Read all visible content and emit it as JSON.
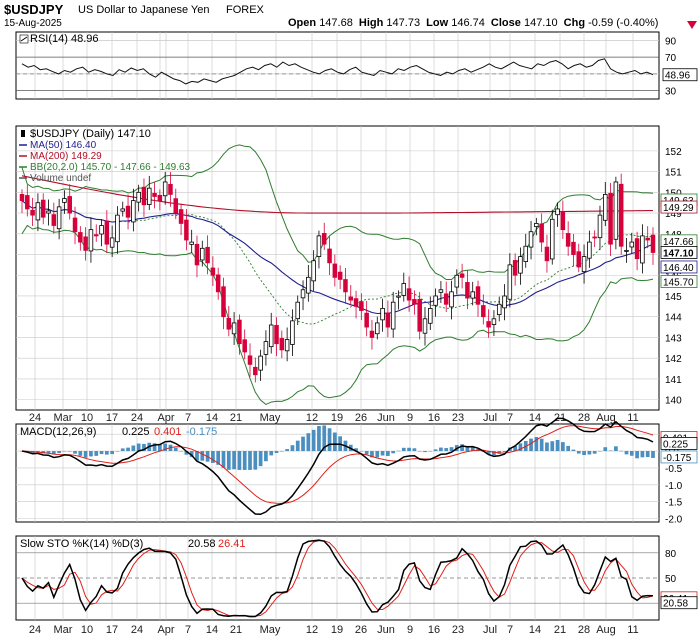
{
  "header": {
    "symbol": "$USDJPY",
    "name": "US Dollar to Japanese Yen",
    "exchange": "FOREX",
    "date": "15-Aug-2025",
    "ohlc": {
      "open_label": "Open",
      "open": "147.68",
      "high_label": "High",
      "high": "147.73",
      "low_label": "Low",
      "low": "146.74",
      "close_label": "Close",
      "close": "147.10",
      "chg_label": "Chg",
      "chg": "-0.59 (-0.40%)"
    },
    "chg_icon": "down-triangle-icon"
  },
  "colors": {
    "up": "#000000",
    "down": "#d6003a",
    "ma50": "#1f1f8f",
    "ma200": "#b0102a",
    "bb": "#2e7d2e",
    "hist": "#4a8fc0",
    "signal": "#e0201a",
    "grid": "#c8c8c8"
  },
  "chart_data": [
    {
      "type": "line",
      "panel": "RSI",
      "legend": {
        "label": "RSI(14)",
        "value": "48.96"
      },
      "ylim": [
        20,
        100
      ],
      "yticks": [
        "90",
        "70",
        "50",
        "30"
      ],
      "overbought": 70,
      "oversold": 30,
      "last_label": "48.96",
      "values": [
        62,
        58,
        60,
        55,
        56,
        53,
        50,
        54,
        52,
        56,
        58,
        52,
        55,
        53,
        50,
        48,
        55,
        52,
        57,
        54,
        56,
        50,
        46,
        52,
        48,
        44,
        42,
        38,
        41,
        40,
        44,
        42,
        40,
        44,
        46,
        48,
        52,
        56,
        58,
        55,
        60,
        62,
        58,
        64,
        60,
        62,
        58,
        55,
        52,
        50,
        54,
        56,
        52,
        50,
        55,
        58,
        52,
        50,
        48,
        54,
        52,
        50,
        56,
        54,
        58,
        60,
        56,
        52,
        50,
        48,
        52,
        50,
        54,
        56,
        52,
        55,
        58,
        62,
        58,
        56,
        60,
        64,
        60,
        58,
        56,
        62,
        60,
        64,
        66,
        62,
        56,
        60,
        62,
        58,
        60,
        66,
        68,
        56,
        52,
        50,
        52,
        54,
        50,
        52,
        48.96
      ]
    },
    {
      "type": "candlestick",
      "panel": "Price",
      "legend": [
        {
          "label": "$USDJPY (Daily) 147.10",
          "icon": "candle-icon"
        },
        {
          "label": "MA(50) 146.40"
        },
        {
          "label": "MA(200) 149.29"
        },
        {
          "label": "BB(20,2.0) 145.70 - 147.66 - 149.63"
        },
        {
          "label": "Volume undef"
        }
      ],
      "ylim": [
        139.5,
        153.2
      ],
      "yticks": [
        "152",
        "151",
        "150",
        "149",
        "148",
        "147",
        "146",
        "145",
        "144",
        "143",
        "142",
        "141",
        "140"
      ],
      "right_labels": [
        "149.63",
        "149.29",
        "147.66",
        "147.10",
        "146.40",
        "145.70"
      ],
      "x_labels": [
        "24",
        "Mar",
        "10",
        "17",
        "24",
        "Mar",
        "Apr",
        "7",
        "14",
        "21",
        "May",
        "12",
        "19",
        "26",
        "Jun",
        "9",
        "16",
        "23",
        "Jul",
        "7",
        "14",
        "21",
        "28",
        "Aug",
        "11"
      ],
      "closes": [
        149.6,
        149.2,
        148.9,
        149.5,
        148.8,
        149.1,
        148.4,
        149.3,
        149.7,
        149.0,
        148.1,
        147.6,
        147.2,
        148.2,
        147.9,
        148.4,
        147.5,
        147.8,
        148.9,
        149.2,
        148.8,
        149.6,
        150.0,
        149.4,
        150.2,
        149.8,
        149.6,
        150.5,
        149.9,
        149.0,
        148.5,
        147.7,
        147.6,
        146.5,
        147.3,
        146.6,
        146.0,
        145.2,
        144.0,
        143.4,
        143.7,
        142.7,
        142.3,
        141.7,
        141.2,
        142.1,
        142.8,
        143.6,
        142.7,
        142.4,
        142.9,
        143.8,
        144.7,
        145.3,
        145.9,
        146.7,
        147.9,
        147.5,
        146.6,
        145.9,
        145.8,
        145.2,
        144.8,
        144.5,
        144.3,
        143.5,
        143.0,
        143.7,
        144.4,
        143.5,
        144.7,
        145.0,
        145.6,
        144.8,
        144.6,
        143.3,
        143.9,
        144.4,
        145.0,
        145.3,
        144.6,
        145.2,
        146.0,
        145.9,
        144.9,
        145.2,
        144.6,
        144.0,
        143.5,
        143.9,
        144.6,
        145.0,
        146.5,
        146.0,
        146.9,
        147.4,
        148.1,
        148.5,
        147.6,
        146.7,
        148.7,
        149.2,
        148.2,
        147.4,
        147.0,
        146.4,
        146.9,
        147.6,
        147.8,
        148.9,
        149.9,
        147.5,
        150.5,
        147.4,
        147.2,
        147.6,
        146.8,
        147.9,
        147.7,
        147.1
      ]
    },
    {
      "type": "line",
      "panel": "MACD",
      "legend": {
        "label": "MACD(12,26,9)",
        "macd": "0.225",
        "signal": "0.401",
        "hist": "-0.175"
      },
      "ylim": [
        -2.1,
        0.8
      ],
      "yticks": [
        "0.5",
        "0.0",
        "-0.5",
        "-1.0",
        "-1.5",
        "-2.0"
      ],
      "right_labels": [
        "0.401",
        "0.225",
        "-0.175"
      ]
    },
    {
      "type": "line",
      "panel": "Slow STO",
      "legend": {
        "label": "Slow STO %K(14) %D(3)",
        "k": "20.58",
        "d": "26.41"
      },
      "ylim": [
        0,
        100
      ],
      "yticks": [
        "80",
        "50",
        "20"
      ],
      "right_labels": [
        "26.41",
        "20.58"
      ],
      "x_labels": [
        "24",
        "Mar",
        "10",
        "17",
        "24",
        "Mar",
        "Apr",
        "7",
        "14",
        "21",
        "May",
        "12",
        "19",
        "26",
        "Jun",
        "9",
        "16",
        "23",
        "Jul",
        "7",
        "14",
        "21",
        "28",
        "Aug",
        "11"
      ]
    }
  ]
}
